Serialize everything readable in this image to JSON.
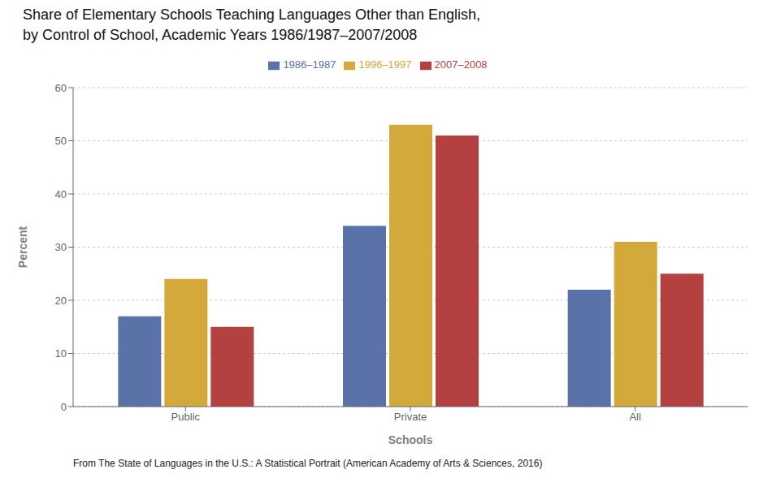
{
  "chart_data": {
    "type": "bar",
    "title": "Share of Elementary Schools Teaching Languages Other than English,",
    "subtitle": "by Control of School, Academic Years 1986/1987–2007/2008",
    "categories": [
      "Public",
      "Private",
      "All"
    ],
    "series": [
      {
        "name": "1986–1987",
        "values": [
          17,
          34,
          22
        ],
        "color": "#5b72a8"
      },
      {
        "name": "1996–1997",
        "values": [
          24,
          53,
          31
        ],
        "color": "#d4a93c"
      },
      {
        "name": "2007–2008",
        "values": [
          15,
          51,
          25
        ],
        "color": "#b54040"
      }
    ],
    "xlabel": "Schools",
    "ylabel": "Percent",
    "ylim": [
      0,
      60
    ],
    "yticks": [
      0,
      10,
      20,
      30,
      40,
      50,
      60
    ],
    "grid": true,
    "legend": "top",
    "annotations": [
      "From The State of Languages in the U.S.: A Statistical Portrait (American Academy of Arts & Sciences, 2016)"
    ]
  }
}
